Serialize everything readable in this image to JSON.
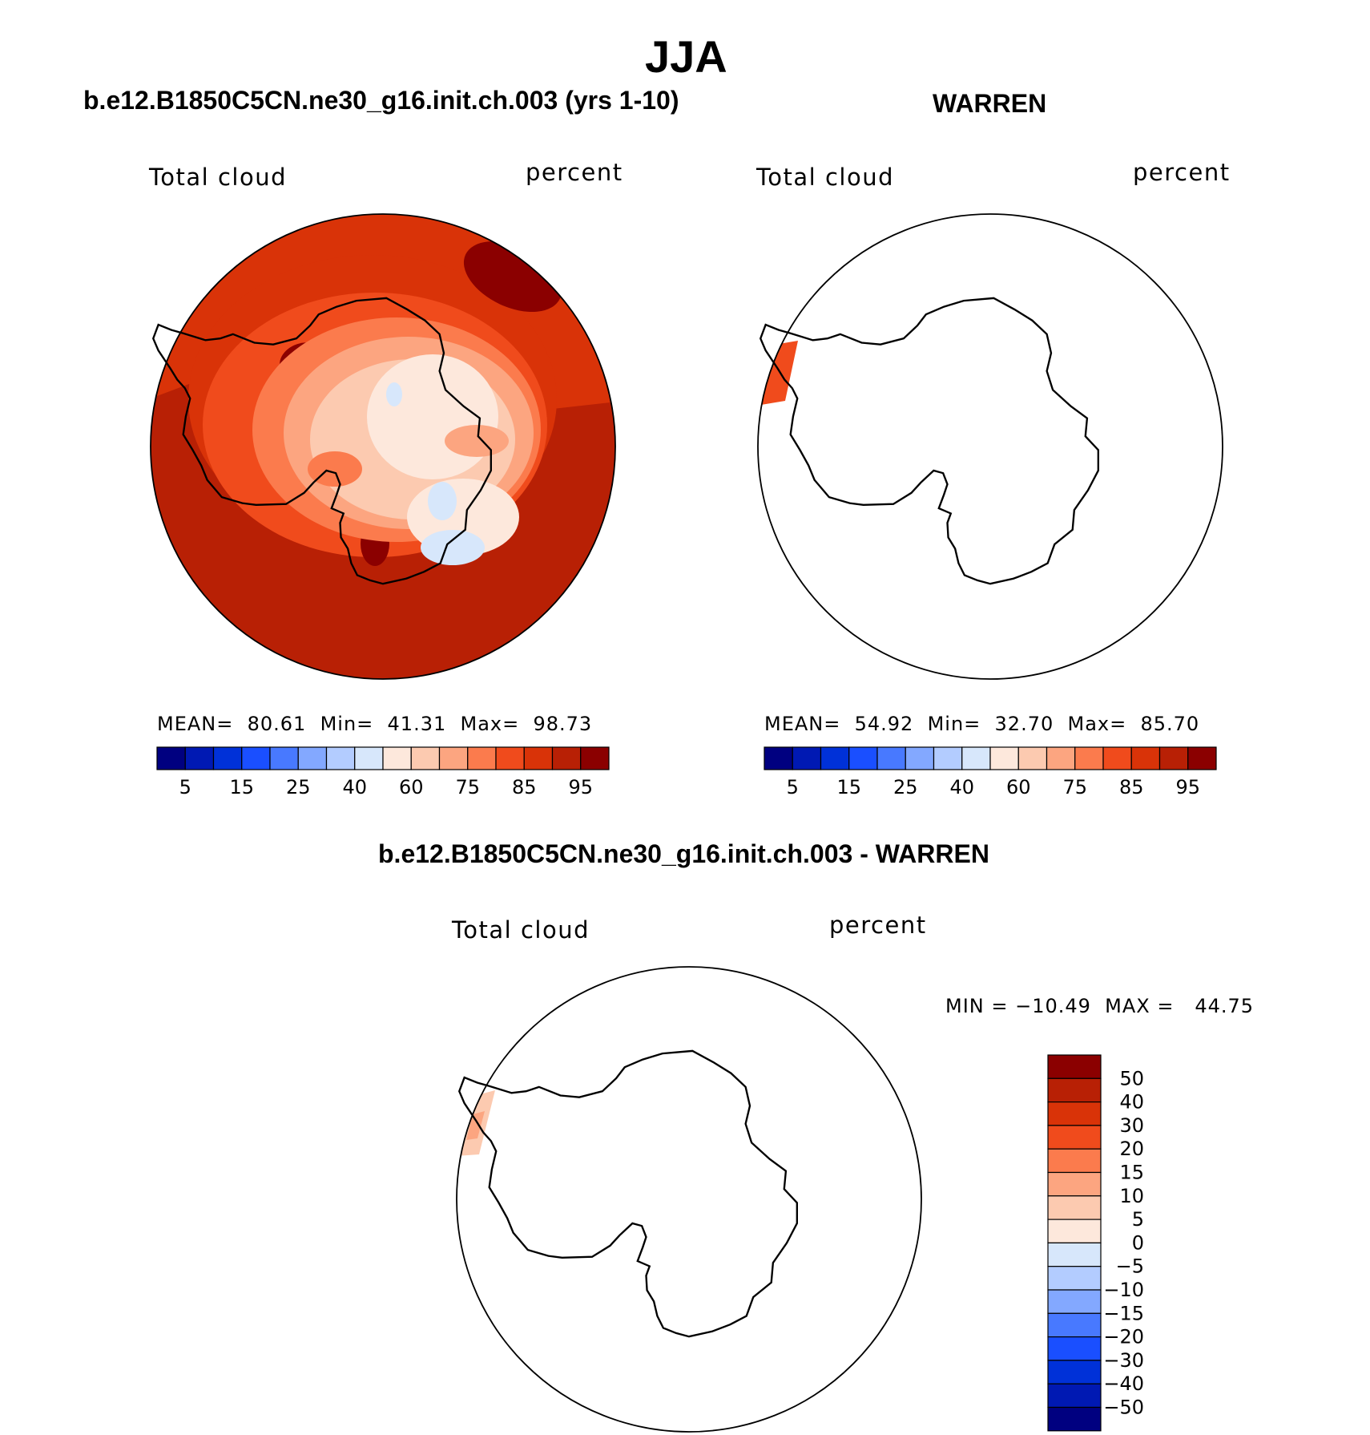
{
  "page_title": "JJA",
  "panels": [
    {
      "title": "b.e12.B1850C5CN.ne30_g16.init.ch.003 (yrs 1-10)",
      "left_label": "Total cloud",
      "right_label": "percent",
      "stats": "MEAN=  80.61  Min=  41.31  Max=  98.73"
    },
    {
      "title": "WARREN",
      "left_label": "Total cloud",
      "right_label": "percent",
      "stats": "MEAN=  54.92  Min=  32.70  Max=  85.70"
    },
    {
      "title": "b.e12.B1850C5CN.ne30_g16.init.ch.003 - WARREN",
      "left_label": "Total cloud",
      "right_label": "percent",
      "stats": "MIN = −10.49  MAX =   44.75"
    }
  ],
  "colorbar_abs": {
    "colors": [
      "#000080",
      "#0019b3",
      "#0031d8",
      "#1a4fff",
      "#4879ff",
      "#83a8ff",
      "#b3ccff",
      "#d7e7fb",
      "#fde8dc",
      "#fccab0",
      "#fca580",
      "#fb7b4d",
      "#f04b1c",
      "#d93308",
      "#b82005",
      "#8b0000"
    ],
    "tick_labels": [
      "5",
      "15",
      "25",
      "40",
      "60",
      "75",
      "85",
      "95"
    ]
  },
  "colorbar_diff": {
    "colors": [
      "#8b0000",
      "#b82005",
      "#d93308",
      "#f04b1c",
      "#fb7b4d",
      "#fca580",
      "#fccab0",
      "#fde8dc",
      "#d7e7fb",
      "#b3ccff",
      "#83a8ff",
      "#4879ff",
      "#1a4fff",
      "#0031d8",
      "#0019b3",
      "#000080"
    ],
    "tick_labels": [
      "50",
      "40",
      "30",
      "20",
      "15",
      "10",
      "5",
      "0",
      "−5",
      "−10",
      "−15",
      "−20",
      "−30",
      "−40",
      "−50"
    ]
  },
  "colors": {
    "outline": "#000000",
    "background": "#ffffff"
  }
}
